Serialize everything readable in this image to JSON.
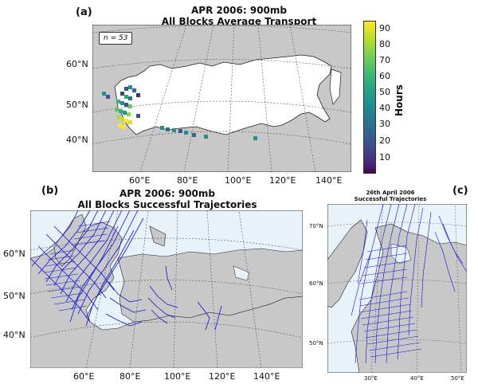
{
  "panels": {
    "a": {
      "letter": "(a)",
      "title_line1": "APR 2006: 900mb",
      "title_line2": "All Blocks Average Transport",
      "n_label": "n = 53",
      "lat_ticks": [
        "60°N",
        "50°N",
        "40°N"
      ],
      "lon_ticks": [
        "60°E",
        "80°E",
        "100°E",
        "120°E",
        "140°E"
      ]
    },
    "b": {
      "letter": "(b)",
      "title_line1": "APR 2006: 900mb",
      "title_line2": "All Blocks Successful Trajectories",
      "lat_ticks": [
        "60°N",
        "50°N",
        "40°N"
      ],
      "lon_ticks": [
        "60°E",
        "80°E",
        "100°E",
        "120°E",
        "140°E"
      ]
    },
    "c": {
      "letter": "(c)",
      "title_line1": "26th April 2006",
      "title_line2": "Successful Trajectories",
      "lat_ticks": [
        "70°N",
        "60°N",
        "50°N"
      ],
      "lon_ticks": [
        "30°E",
        "40°E",
        "50°E"
      ]
    }
  },
  "colorbar": {
    "label": "Hours",
    "ticks": [
      "90",
      "80",
      "70",
      "60",
      "50",
      "40",
      "30",
      "20",
      "10"
    ],
    "range": [
      1,
      95
    ],
    "colormap": "viridis"
  },
  "colors": {
    "land": "#c8c8c8",
    "ocean": "#e8f2fb",
    "trajectory": "#1010e0"
  }
}
